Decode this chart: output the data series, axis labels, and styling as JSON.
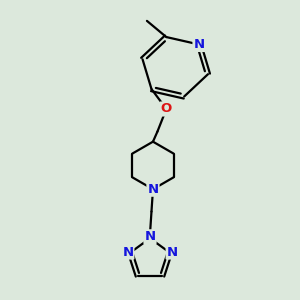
{
  "bg_color": "#dce8dc",
  "bond_color": "#000000",
  "n_color": "#1515dd",
  "o_color": "#dd1515",
  "line_width": 1.6,
  "font_size": 8.5,
  "figsize": [
    3.0,
    3.0
  ],
  "dpi": 100,
  "xlim": [
    0,
    10
  ],
  "ylim": [
    0,
    10
  ]
}
